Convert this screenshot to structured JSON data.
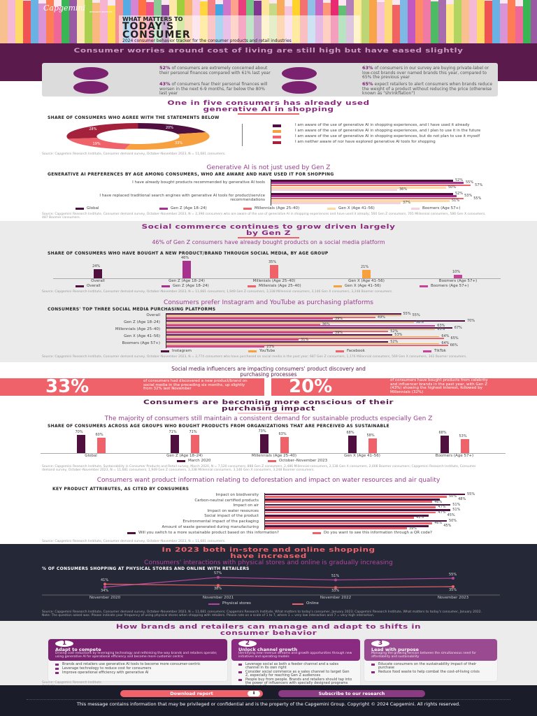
{
  "header": {
    "logo": "Capgemini",
    "logo_sub": "RESEARCH INSTITUTE",
    "kicker": "WHAT MATTERS TO",
    "title_line1": "TODAY'S",
    "title_line2": "CONSUMER",
    "subtitle": "2024 consumer behavior tracker for the consumer products and retail industries"
  },
  "worries": {
    "heading": "Consumer worries around cost of living are still high but have eased slightly",
    "stats": [
      {
        "pct": "52%",
        "text": "of consumers are extremely concerned about their personal finances compared with 61% last year",
        "icon": "wallet-icon"
      },
      {
        "pct": "43%",
        "text": "of consumers fear their personal finances will worsen in the next 6-9 months, far below the 80% last year",
        "icon": "coins-icon"
      },
      {
        "pct": "63%",
        "text": "of consumers in our survey are buying private-label or low-cost brands over named brands this year, compared to 65% the previous year",
        "icon": "tag-icon"
      },
      {
        "pct": "65%",
        "text": "expect retailers to alert consumers when brands reduce the weight of a product without reducing the price (otherwise known as \"shrinkflation\")",
        "icon": "scale-icon"
      }
    ]
  },
  "genai": {
    "heading": "One in five consumers has already used generative AI in shopping",
    "source": "Source: Capgemini Research Institute, Consumer demand survey, October–November 2023, N = 11,681 consumers.",
    "sub_heading": "Generative AI is not just used by Gen Z",
    "source2": "Source: Capgemini Research Institute, Consumer demand survey, October–November 2023, N = 2,398 consumers who are aware of the use of generative AI in shopping experiences and have used it already; 560 Gen Z consumers, 765 Millennial consumers, 586 Gen X consumers, 487 Boomer consumers."
  },
  "social": {
    "heading": "Social commerce continues to grow driven largely by Gen Z",
    "sub_heading": "46% of Gen Z consumers have already bought products on a social media platform",
    "source": "Source: Capgemini Research Institute, Consumer demand survey, October–November 2023, N = 11,681 consumers; 1,949 Gen Z consumers, 3,338 Millennial consumers, 3,146 Gen X consumers, 3,248 Boomer consumers.",
    "platforms_heading": "Consumers prefer Instagram and YouTube as purchasing platforms",
    "platforms_source": "Source: Capgemini Research Institute, Consumer demand survey, October–November 2023, N = 2,774 consumers who have purchased on social media in the past year; 687 Gen Z consumers, 1,176 Millennial consumers, 569 Gen X consumers, 342 Boomer consumers."
  },
  "influencers": {
    "heading": "Social media influencers are impacting consumers' product discovery and purchasing processes",
    "stats": [
      {
        "pct": "33%",
        "text": "of consumers had discovered a new product/brand on social media in the preceding six months, up slightly from 32% last November"
      },
      {
        "pct": "20%",
        "text": "of consumers have bought products from celebrity and influencer brands in the past year, with Gen Z (43%) showing the highest interest, followed by Millennials (32%)"
      }
    ]
  },
  "conscious": {
    "heading": "Consumers are becoming more conscious of their purchasing impact",
    "sub_heading": "The majority of consumers still maintain a consistent demand for sustainable products especially Gen Z",
    "source": "Source: Capgemini Research Institute, Sustainability in Consumer Products and Retail survey, March 2020, N = 7,520 consumers; 888 Gen Z consumers, 2,486 Millennial consumers, 2,138 Gen X consumers, 2,008 Boomer consumers; Capgemini Research Institute, Consumer demand survey, October–November 2023, N = 11,681 consumers; 1,949 Gen Z consumers, 3,338 Millennial consumers, 3,146 Gen X consumers, 3,248 Boomer consumers.",
    "attributes_heading": "Consumers want product information relating to deforestation and impact on water resources and air quality",
    "attributes_source": "Source: Capgemini Research Institute, Consumer demand survey, October–November 2023, N = 11,681 consumers."
  },
  "channels": {
    "heading": "In 2023 both in-store and online shopping have increased",
    "sub_heading": "Consumers' interactions with physical stores and online is gradually increasing",
    "source": "Source: Capgemini Research Institute, Consumer demand survey, October–November 2023, N = 11,681 consumers; Capgemini Research Institute, What matters to today's consumer, January 2023; Capgemini Research Institute, What matters to today's consumer, January 2022. Note: The question asked was: Please indicate your frequency of using physical stores when shopping with retailers. Please rate on a scale of 1 to 7, where 1 = very low interaction and 7 = very high interaction."
  },
  "actions": {
    "heading": "How brands and retailers can manage and adapt to shifts in consumer behavior",
    "source": "Source: Capgemini Research Institute Analysis.",
    "cards": [
      {
        "num": "1",
        "title": "Adapt to compete",
        "desc": "Driving cost reductions by leveraging technology and rethinking the way brands and retailers operate; using generative AI for operational efficiency and become more customer centric",
        "bullets": [
          "Brands and retailers use generative AI tools to become more consumer-centric",
          "Leverage technology to reduce cost for consumers",
          "Improve operational efficiency with generative AI"
        ]
      },
      {
        "num": "2",
        "title": "Unlock channel growth",
        "desc": "Identifying new revenue streams and growth opportunities through new initiatives and operating models",
        "bullets": [
          "Leverage social as both a feeder channel and a sales channel in its own right",
          "Consider social commerce as a sales channel to target Gen Z, especially for reaching Gen Z audiences",
          "People buy from people. Brands and retailers should tap into the power of influencers with specially designed programs for storytelling"
        ]
      },
      {
        "num": "3",
        "title": "Lead with purpose",
        "desc": "Managing the growing tension between the simultaneous need for affordability and sustainability",
        "bullets": [
          "Educate consumers on the sustainability impact of their purchase",
          "Reduce food waste to help combat the cost-of-living crisis"
        ]
      }
    ]
  },
  "footer": {
    "download_label": "Download report",
    "subscribe_label": "Subscribe to our research",
    "disclaimer": "This message contains information that may be privileged or confidential and is the property of the Capgemini Group. Copyright © 2024 Capgemini. All rights reserved."
  },
  "colors": {
    "dark_purple": "#4f0f3f",
    "magenta": "#a8318f",
    "coral": "#f0626a",
    "orange": "#f7a040",
    "light_pink": "#f5d0e2",
    "dark_red": "#a3213a",
    "navy": "#252836"
  },
  "chart_data": [
    {
      "id": "donut",
      "type": "pie",
      "title": "SHARE OF CONSUMERS WHO AGREE WITH THE STATEMENTS BELOW",
      "labels": [
        "I am aware of the use of generative AI in shopping experiences, and I have used it already",
        "I am aware of the use of generative AI in shopping experiences, and I plan to use it in the future",
        "I am aware of the use of generative AI in shopping experiences, but do not plan to use it myself",
        "I am neither aware of nor have explored generative AI tools for shopping"
      ],
      "values": [
        20,
        33,
        19,
        28
      ],
      "colors": [
        "#4f0f3f",
        "#f7a040",
        "#f0626a",
        "#a3213a"
      ],
      "legend": "right"
    },
    {
      "id": "genai_age",
      "type": "bar",
      "orientation": "horizontal",
      "title": "GENERATIVE AI PREFERENCES BY AGE AMONG CONSUMERS, WHO ARE AWARE AND HAVE USED IT FOR SHOPPING",
      "categories": [
        "I have already bought products recommended by generative AI tools",
        "I have replaced traditional search engines with generative AI tools for product/service recommendations"
      ],
      "series": [
        {
          "name": "Global",
          "values": [
            52,
            52
          ],
          "color": "#4f0f3f"
        },
        {
          "name": "Gen Z (Age 18–24)",
          "values": [
            55,
            53
          ],
          "color": "#a8318f"
        },
        {
          "name": "Millennials (Age 25–40)",
          "values": [
            57,
            55
          ],
          "color": "#f0626a"
        },
        {
          "name": "Gen X (Age 41–56)",
          "values": [
            50,
            51
          ],
          "color": "#fcd9a0"
        },
        {
          "name": "Boomers (Age 57+)",
          "values": [
            36,
            37
          ],
          "color": "#f5d0e2"
        }
      ],
      "legend": "bottom"
    },
    {
      "id": "social_age",
      "type": "bar",
      "title": "SHARE OF CONSUMERS WHO HAVE BOUGHT A NEW PRODUCT/BRAND THROUGH SOCIAL MEDIA, BY AGE GROUP",
      "categories": [
        "Overall",
        "Gen Z (Age 18–24)",
        "Millenials (Age 25–40)",
        "Gen X (Age 41–56)",
        "Boomers (Age 57+)"
      ],
      "values": [
        24,
        46,
        35,
        21,
        10
      ],
      "colors": [
        "#4f0f3f",
        "#a8318f",
        "#f0626a",
        "#f7a040",
        "#c8429c"
      ],
      "legend": "bottom"
    },
    {
      "id": "platforms",
      "type": "bar",
      "orientation": "horizontal",
      "title": "CONSUMERS' TOP THREE SOCIAL MEDIA PURCHASING PLATFORMS",
      "categories": [
        "Overall",
        "Gen Z (Age 18–24)",
        "Millennials (Age 25–40)",
        "Gen X (Age 41–56)",
        "Boomers (Age 57+)"
      ],
      "series": [
        {
          "name": "Instagram",
          "values": [
            55,
            70,
            67,
            53,
            52
          ],
          "color": "#4f0f3f"
        },
        {
          "name": "YouTube",
          "values": [
            55,
            58,
            63,
            64,
            64
          ],
          "color": "#f7a040"
        },
        {
          "name": "Facebook",
          "values": [
            49,
            36,
            52,
            65,
            66
          ],
          "color": "#f0626a"
        },
        {
          "name": "TikTok",
          "values": [
            39,
            63,
            39,
            31,
            23
          ],
          "color": "#c8429c"
        }
      ],
      "legend": "bottom"
    },
    {
      "id": "sustainable",
      "type": "bar",
      "title": "SHARE OF CONSUMERS ACROSS AGE GROUPS WHO BOUGHT PRODUCTS FROM ORGANIZATIONS THAT ARE PERCEIVED AS SUSTAINABLE",
      "categories": [
        "Global",
        "Gen Z (Age 18–24)",
        "Millennials (Age 25–40)",
        "Gen X (Age 41–56)",
        "Boomers (Age 57+)"
      ],
      "series": [
        {
          "name": "March 2020",
          "values": [
            70,
            71,
            73,
            68,
            68
          ],
          "color": "#4f0f3f"
        },
        {
          "name": "October–November 2023",
          "values": [
            60,
            71,
            63,
            58,
            53
          ],
          "color": "#f0626a"
        }
      ],
      "legend": "bottom"
    },
    {
      "id": "attributes",
      "type": "bar",
      "orientation": "horizontal",
      "title": "KEY PRODUCT ATTRIBUTES, AS CITED BY CONSUMERS",
      "categories": [
        "Impact on biodiversity",
        "Carbon-neutral certified products",
        "Impact on air",
        "Impact on water resources",
        "Social impact of the product",
        "Environmental impact of the packaging",
        "Amount of waste generated during manufacturing"
      ],
      "series": [
        {
          "name": "Will you switch to a more sustainable product based on this information?",
          "values": [
            55,
            48,
            51,
            51,
            45,
            50,
            45
          ],
          "color": "#4f0f3f"
        },
        {
          "name": "Do you want to see this information through a QR code?",
          "values": [
            50,
            46,
            47,
            47,
            41,
            46,
            39
          ],
          "color": "#f0626a"
        }
      ],
      "legend": "bottom"
    },
    {
      "id": "channels",
      "type": "line",
      "title": "% OF CONSUMERS SHOPPING AT PHYSICAL STORES AND ONLINE WITH RETAILERS",
      "x": [
        "November 2020",
        "November 2021",
        "November 2022",
        "November 2023"
      ],
      "series": [
        {
          "name": "Physical stores",
          "values": [
            34,
            57,
            51,
            55
          ],
          "color": "#b0479c"
        },
        {
          "name": "Online",
          "values": [
            41,
            38,
            33,
            35
          ],
          "color": "#f0626a"
        }
      ],
      "legend": "bottom"
    }
  ]
}
